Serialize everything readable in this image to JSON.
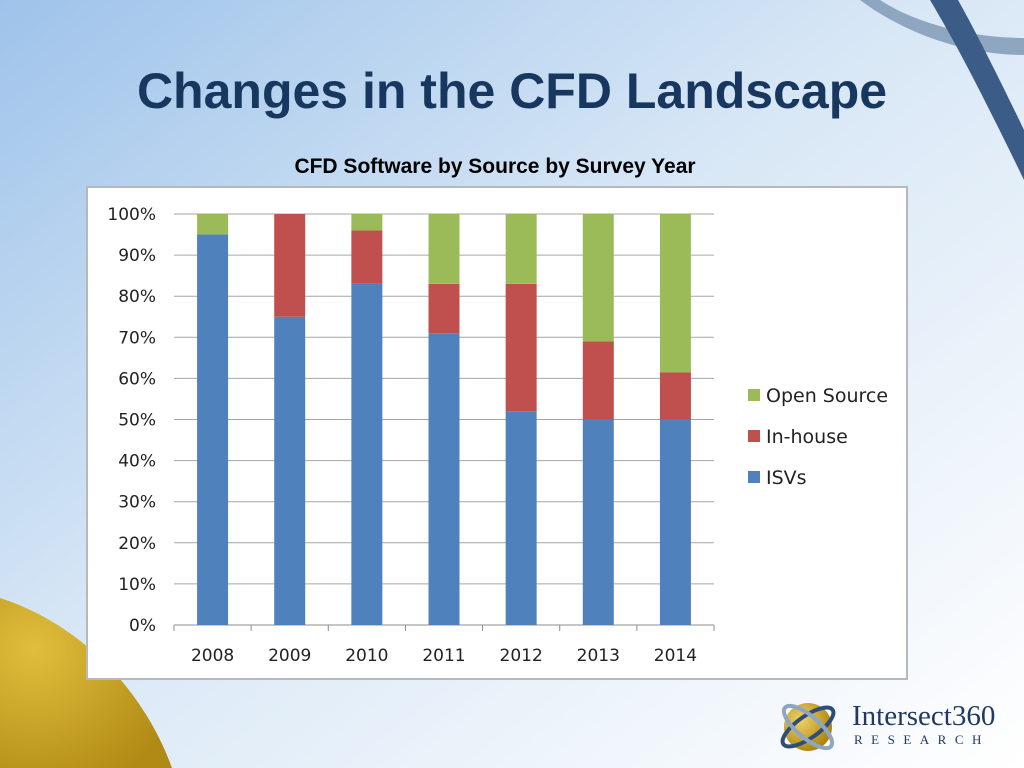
{
  "slide": {
    "title": "Changes in the CFD Landscape"
  },
  "colors": {
    "isv": "#4F81BD",
    "in_house": "#C0504D",
    "open_source": "#9BBB59",
    "title": "#17375E",
    "gold": "#C9A227",
    "swoosh": "#365F8A"
  },
  "chart_data": {
    "type": "bar",
    "stacked": true,
    "percent": true,
    "title": "CFD Software by Source by Survey Year",
    "categories": [
      "2008",
      "2009",
      "2010",
      "2011",
      "2012",
      "2013",
      "2014"
    ],
    "series": [
      {
        "name": "ISVs",
        "values": [
          95,
          75,
          83,
          71,
          52,
          50,
          50
        ]
      },
      {
        "name": "In-house",
        "values": [
          0,
          25,
          13,
          12,
          31,
          19,
          11.5
        ]
      },
      {
        "name": "Open Source",
        "values": [
          5,
          0,
          4,
          17,
          17,
          31,
          38.5
        ]
      }
    ],
    "y_ticks": [
      "0%",
      "10%",
      "20%",
      "30%",
      "40%",
      "50%",
      "60%",
      "70%",
      "80%",
      "90%",
      "100%"
    ],
    "ylim": [
      0,
      100
    ],
    "grid": true,
    "legend": [
      "Open Source",
      "In-house",
      "ISVs"
    ],
    "legend_position": "right",
    "xlabel": "",
    "ylabel": ""
  },
  "logo": {
    "name": "Intersect360",
    "subtitle": "RESEARCH"
  }
}
